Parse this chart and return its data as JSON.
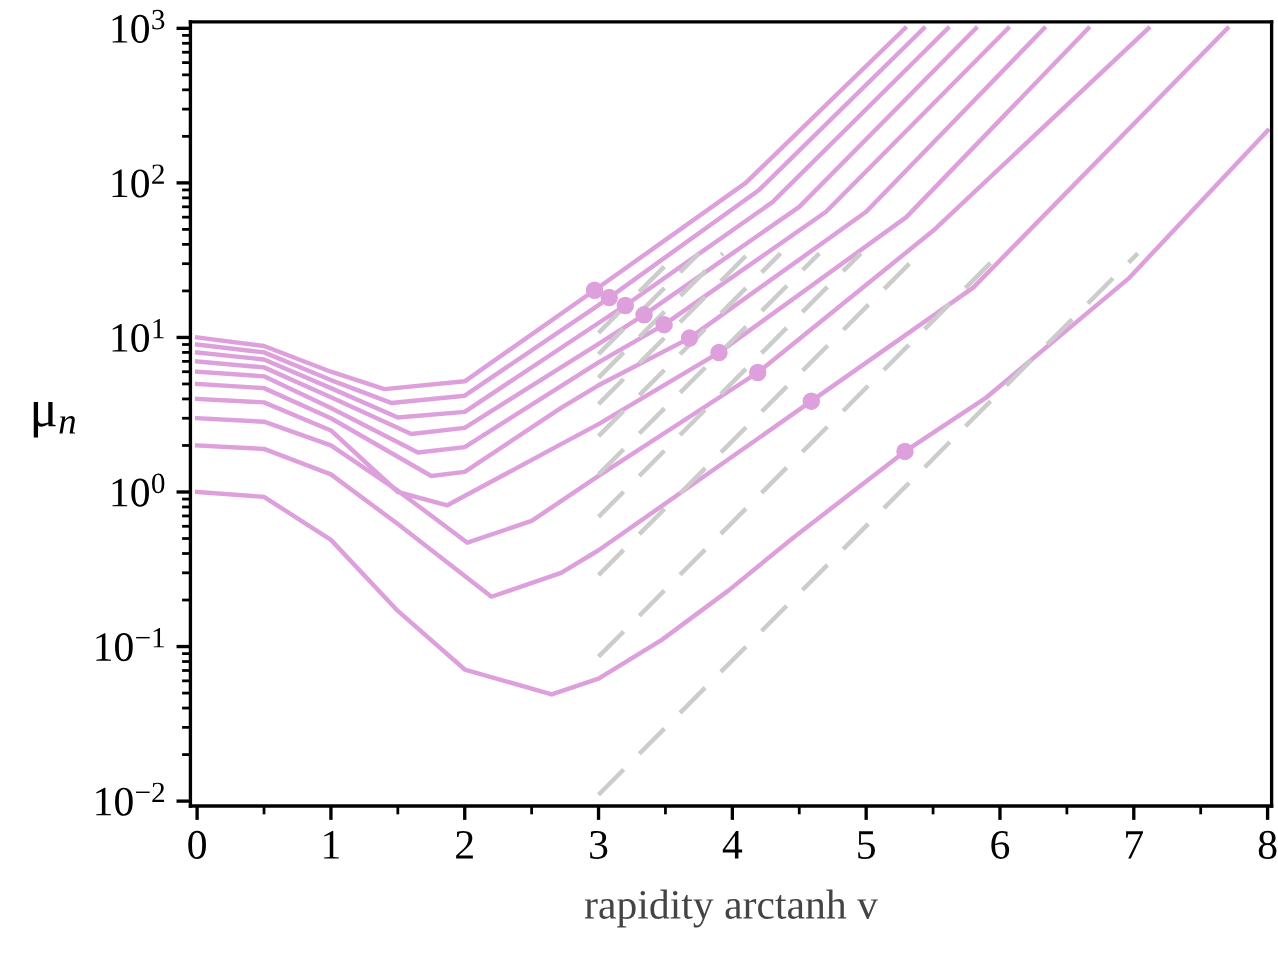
{
  "chart_data": {
    "type": "line",
    "xlabel": "rapidity arctanh v",
    "ylabel": "μ$_{n}$",
    "log": "y",
    "grid": false,
    "legend": false,
    "xlim": [
      -0.05,
      8.03
    ],
    "ylim": [
      0.0093,
      1100
    ],
    "xticks": [
      0,
      1,
      2,
      3,
      4,
      5,
      6,
      7,
      8
    ],
    "yticks": [
      {
        "value": 0.01,
        "label": "10$^{−2}$"
      },
      {
        "value": 0.1,
        "label": "10$^{−1}$"
      },
      {
        "value": 1,
        "label": "10$^{0}$"
      },
      {
        "value": 10,
        "label": "10$^{1}$"
      },
      {
        "value": 100,
        "label": "10$^{2}$"
      },
      {
        "value": 1000,
        "label": "10$^{3}$"
      }
    ],
    "series": [
      {
        "color": "#dea0dc",
        "line_style": "solid",
        "marker": "none",
        "x": [
          0,
          0.5,
          1,
          1.5,
          2,
          2.65,
          3,
          3.47,
          3.97,
          4.46,
          4.96,
          5.29,
          5.9,
          6.96,
          8
        ],
        "values": [
          1,
          0.93,
          0.49,
          0.17,
          0.071,
          0.049,
          0.062,
          0.11,
          0.23,
          0.51,
          1.1,
          1.83,
          4.1,
          24,
          218
        ]
      },
      {
        "color": "#dea0dc",
        "line_style": "solid",
        "marker": "none",
        "x": [
          0,
          0.5,
          1,
          1.5,
          2.2,
          2.72,
          3,
          3.71,
          4.59,
          5.8,
          7.7
        ],
        "values": [
          2,
          1.9,
          1.3,
          0.62,
          0.21,
          0.3,
          0.42,
          1.13,
          3.87,
          21,
          1000
        ]
      },
      {
        "color": "#dea0dc",
        "line_style": "solid",
        "marker": "none",
        "x": [
          0,
          0.5,
          1,
          1.5,
          2.02,
          2.5,
          3,
          4.19,
          5.5,
          7.11
        ],
        "values": [
          3,
          2.85,
          2.0,
          1.02,
          0.47,
          0.65,
          1.27,
          5.93,
          49,
          1000
        ]
      },
      {
        "color": "#dea0dc",
        "line_style": "solid",
        "marker": "none",
        "x": [
          0,
          0.5,
          1,
          1.5,
          1.87,
          2.72,
          3,
          3.9,
          5.3,
          6.66
        ],
        "values": [
          4,
          3.8,
          2.5,
          1.0,
          0.82,
          2.04,
          2.75,
          7.98,
          60,
          1000
        ]
      },
      {
        "color": "#dea0dc",
        "line_style": "solid",
        "marker": "none",
        "x": [
          0,
          0.5,
          1,
          1.75,
          2,
          2.72,
          3,
          3.68,
          5,
          6.33
        ],
        "values": [
          5,
          4.7,
          3.0,
          1.27,
          1.35,
          3.5,
          4.9,
          9.9,
          65,
          1000
        ]
      },
      {
        "color": "#dea0dc",
        "line_style": "solid",
        "marker": "none",
        "x": [
          0,
          0.5,
          1,
          1.65,
          2,
          3,
          3.49,
          4.7,
          6.06
        ],
        "values": [
          6,
          5.6,
          3.5,
          1.8,
          1.95,
          6.9,
          12.1,
          65,
          1000
        ]
      },
      {
        "color": "#dea0dc",
        "line_style": "solid",
        "marker": "none",
        "x": [
          0,
          0.5,
          1,
          1.6,
          2,
          3,
          3.34,
          4.5,
          5.82
        ],
        "values": [
          7,
          6.4,
          4.1,
          2.37,
          2.6,
          9.1,
          14.0,
          70,
          1000
        ]
      },
      {
        "color": "#dea0dc",
        "line_style": "solid",
        "marker": "none",
        "x": [
          0,
          0.5,
          1,
          1.5,
          2,
          3,
          3.2,
          4.3,
          5.61
        ],
        "values": [
          8,
          7.2,
          4.7,
          3.03,
          3.3,
          12.4,
          16.1,
          75,
          1000
        ]
      },
      {
        "color": "#dea0dc",
        "line_style": "solid",
        "marker": "none",
        "x": [
          0,
          0.5,
          1,
          1.45,
          2,
          3,
          3.08,
          4.2,
          5.43
        ],
        "values": [
          9,
          8.0,
          5.3,
          3.77,
          4.2,
          16.2,
          18.1,
          90,
          1000
        ]
      },
      {
        "color": "#dea0dc",
        "line_style": "solid",
        "marker": "none",
        "x": [
          0,
          0.5,
          1,
          1.4,
          2,
          2.97,
          4.1,
          5.29
        ],
        "values": [
          10,
          8.8,
          6.0,
          4.63,
          5.2,
          20.2,
          100,
          1000
        ]
      },
      {
        "color": "#cccccc",
        "line_style": "dashed",
        "marker": "none",
        "x": [
          3,
          7.03
        ],
        "values": [
          0.011,
          35
        ]
      },
      {
        "color": "#cccccc",
        "line_style": "dashed",
        "marker": "none",
        "x": [
          3,
          6.0
        ],
        "values": [
          0.086,
          35
        ]
      },
      {
        "color": "#cccccc",
        "line_style": "dashed",
        "marker": "none",
        "x": [
          3,
          5.4
        ],
        "values": [
          0.29,
          35
        ]
      },
      {
        "color": "#cccccc",
        "line_style": "dashed",
        "marker": "none",
        "x": [
          3,
          4.96
        ],
        "values": [
          0.69,
          35
        ]
      },
      {
        "color": "#cccccc",
        "line_style": "dashed",
        "marker": "none",
        "x": [
          3,
          4.65
        ],
        "values": [
          1.3,
          35
        ]
      },
      {
        "color": "#cccccc",
        "line_style": "dashed",
        "marker": "none",
        "x": [
          3,
          4.36
        ],
        "values": [
          2.3,
          35
        ]
      },
      {
        "color": "#cccccc",
        "line_style": "dashed",
        "marker": "none",
        "x": [
          3,
          4.12
        ],
        "values": [
          3.7,
          35
        ]
      },
      {
        "color": "#cccccc",
        "line_style": "dashed",
        "marker": "none",
        "x": [
          3,
          3.93
        ],
        "values": [
          5.5,
          35
        ]
      },
      {
        "color": "#cccccc",
        "line_style": "dashed",
        "marker": "none",
        "x": [
          3,
          3.75
        ],
        "values": [
          7.8,
          35
        ]
      },
      {
        "color": "#cccccc",
        "line_style": "dashed",
        "marker": "none",
        "x": [
          3,
          3.59
        ],
        "values": [
          10.7,
          35
        ]
      },
      {
        "type": "scatter",
        "color": "#dea0dc",
        "marker": "circle",
        "x": [
          2.97,
          3.08,
          3.2,
          3.34,
          3.49,
          3.68,
          3.9,
          4.19,
          4.59,
          5.29
        ],
        "values": [
          20.2,
          18.1,
          16.1,
          14.0,
          12.1,
          9.9,
          7.98,
          5.93,
          3.87,
          1.83
        ]
      }
    ]
  }
}
